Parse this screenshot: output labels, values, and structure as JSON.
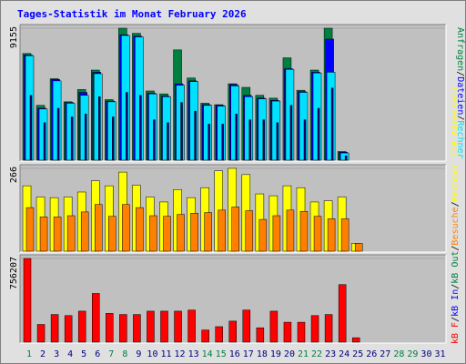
{
  "title": "Tages-Statistik im Monat February 2026",
  "colors": {
    "frame_bg": "#e0e0e0",
    "panel_bg": "#c0c0c0",
    "title": "#0000ff",
    "weekday_tick": "#000080",
    "weekend_tick": "#008040"
  },
  "legend": {
    "top": [
      {
        "text": "Anfragen",
        "color": "#008040"
      },
      {
        "text": "/",
        "color": "#000000"
      },
      {
        "text": "Dateien",
        "color": "#0000ff"
      },
      {
        "text": "/",
        "color": "#000000"
      },
      {
        "text": "Rechner",
        "color": "#00e0ff"
      }
    ],
    "bottom": [
      {
        "text": "kB F",
        "color": "#ff0000"
      },
      {
        "text": "/",
        "color": "#000000"
      },
      {
        "text": "kB In",
        "color": "#0000ff"
      },
      {
        "text": "/",
        "color": "#000000"
      },
      {
        "text": "kB Out",
        "color": "#008040"
      },
      {
        "text": "/",
        "color": "#000000"
      },
      {
        "text": "Besuche",
        "color": "#ff8000"
      },
      {
        "text": "/",
        "color": "#000000"
      },
      {
        "text": "Rechner (IP-Adressen)",
        "color": "#ffff00"
      }
    ]
  },
  "chart_data": [
    {
      "type": "bar",
      "panel": "hits",
      "ymax_label": "9155",
      "ylim": [
        0,
        9155
      ],
      "categories": [
        "1",
        "2",
        "3",
        "4",
        "5",
        "6",
        "7",
        "8",
        "9",
        "10",
        "11",
        "12",
        "13",
        "14",
        "15",
        "16",
        "17",
        "18",
        "19",
        "20",
        "21",
        "22",
        "23",
        "24",
        "25",
        "26",
        "27",
        "28",
        "29",
        "30",
        "31"
      ],
      "weekend_days": [
        1,
        7,
        8,
        14,
        15,
        21,
        22,
        28,
        29
      ],
      "series": [
        {
          "name": "Anfragen",
          "color": "#008040",
          "values": [
            7400,
            3800,
            5650,
            4050,
            4900,
            6250,
            4200,
            9155,
            8800,
            4800,
            4600,
            7650,
            5700,
            3950,
            3850,
            5300,
            5050,
            4500,
            4300,
            7100,
            4850,
            6250,
            9155,
            600,
            0,
            0,
            0,
            0,
            0,
            0,
            0
          ]
        },
        {
          "name": "Dateien",
          "color": "#0000ff",
          "values": [
            7300,
            3600,
            5600,
            4000,
            4700,
            6100,
            4100,
            8700,
            8600,
            4650,
            4450,
            5300,
            5500,
            3850,
            3800,
            5250,
            4500,
            4300,
            4150,
            6350,
            4750,
            6100,
            8400,
            550,
            0,
            0,
            0,
            0,
            0,
            0,
            0
          ]
        },
        {
          "name": "Rechner",
          "color": "#00e0ff",
          "values": [
            7250,
            3550,
            5500,
            3950,
            4500,
            6000,
            4050,
            8650,
            8550,
            4600,
            4400,
            5200,
            5450,
            3800,
            3750,
            5150,
            4400,
            4250,
            4100,
            6300,
            4700,
            6050,
            6100,
            500,
            0,
            0,
            0,
            0,
            0,
            0,
            0
          ]
        },
        {
          "name": "Besuche",
          "color": "#000080",
          "values": [
            4500,
            2600,
            3600,
            3000,
            3200,
            4400,
            3000,
            4700,
            4500,
            2800,
            2600,
            4000,
            3400,
            2500,
            2500,
            3200,
            2800,
            2800,
            2600,
            3800,
            2800,
            3600,
            5000,
            300,
            0,
            0,
            0,
            0,
            0,
            0,
            0
          ]
        }
      ]
    },
    {
      "type": "bar",
      "panel": "visits",
      "ymax_label": "266",
      "ylim": [
        0,
        266
      ],
      "categories": [
        "1",
        "2",
        "3",
        "4",
        "5",
        "6",
        "7",
        "8",
        "9",
        "10",
        "11",
        "12",
        "13",
        "14",
        "15",
        "16",
        "17",
        "18",
        "19",
        "20",
        "21",
        "22",
        "23",
        "24",
        "25",
        "26",
        "27",
        "28",
        "29",
        "30",
        "31"
      ],
      "series": [
        {
          "name": "Rechner (IP-Adressen)",
          "color": "#ffff00",
          "values": [
            210,
            174,
            172,
            174,
            190,
            226,
            210,
            254,
            212,
            174,
            158,
            198,
            172,
            204,
            258,
            266,
            246,
            184,
            178,
            210,
            204,
            158,
            162,
            174,
            25,
            0,
            0,
            0,
            0,
            0,
            0
          ]
        },
        {
          "name": "Besuche",
          "color": "#ff8000",
          "values": [
            140,
            110,
            110,
            114,
            126,
            150,
            112,
            150,
            140,
            114,
            112,
            118,
            122,
            124,
            132,
            142,
            130,
            102,
            114,
            132,
            128,
            112,
            104,
            104,
            25,
            0,
            0,
            0,
            0,
            0,
            0
          ]
        }
      ]
    },
    {
      "type": "bar",
      "panel": "kbytes",
      "ymax_label": "756207",
      "ylim": [
        0,
        756207
      ],
      "categories": [
        "1",
        "2",
        "3",
        "4",
        "5",
        "6",
        "7",
        "8",
        "9",
        "10",
        "11",
        "12",
        "13",
        "14",
        "15",
        "16",
        "17",
        "18",
        "19",
        "20",
        "21",
        "22",
        "23",
        "24",
        "25",
        "26",
        "27",
        "28",
        "29",
        "30",
        "31"
      ],
      "series": [
        {
          "name": "kB F",
          "color": "#ff0000",
          "values": [
            756207,
            160000,
            250000,
            240000,
            280000,
            440000,
            260000,
            250000,
            250000,
            280000,
            280000,
            280000,
            290000,
            110000,
            140000,
            190000,
            290000,
            130000,
            280000,
            180000,
            180000,
            240000,
            250000,
            520000,
            40000,
            0,
            0,
            0,
            0,
            0,
            0
          ]
        }
      ]
    }
  ]
}
